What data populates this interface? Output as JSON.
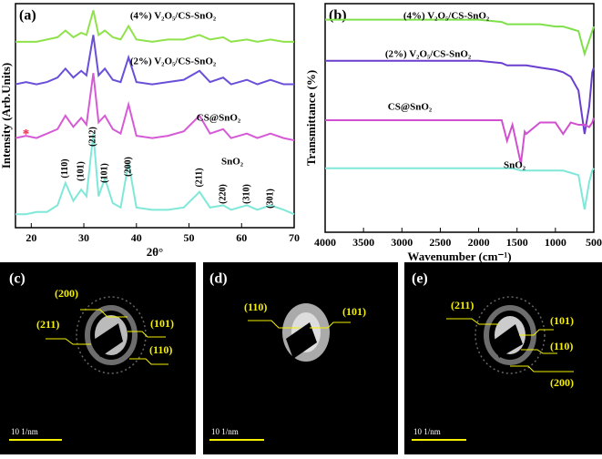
{
  "chart_data": [
    {
      "type": "line",
      "panel_label": "(a)",
      "xlabel": "2θ°",
      "ylabel": "Intensity (Arb.Units)",
      "xlim": [
        17,
        70
      ],
      "xticks": [
        20,
        30,
        40,
        50,
        60,
        70
      ],
      "ylim": [
        0,
        100
      ],
      "x": [
        17,
        19,
        21,
        23,
        25,
        26.5,
        28,
        29.5,
        30.5,
        31.8,
        32.8,
        34,
        35.5,
        37,
        38.5,
        40,
        43,
        46,
        49,
        52,
        54,
        56.5,
        58,
        61,
        63,
        65.5,
        68,
        70
      ],
      "series": [
        {
          "name": "SnO₂",
          "color": "#7fe8d8",
          "values": [
            6,
            6,
            7,
            7,
            10,
            20,
            12,
            17,
            14,
            42,
            14,
            22,
            11,
            9,
            29,
            9,
            8,
            8,
            9,
            16,
            9,
            10,
            8,
            10,
            8,
            10,
            8,
            6
          ]
        },
        {
          "name": "CS@SnO₂",
          "color": "#d65ad6",
          "values": [
            40,
            41,
            40,
            42,
            44,
            50,
            45,
            49,
            46,
            69,
            47,
            50,
            44,
            42,
            55,
            41,
            40,
            41,
            43,
            50,
            42,
            44,
            40,
            42,
            40,
            42,
            40,
            39
          ]
        },
        {
          "name": "(2%) V₂O₅/CS-SnO₂",
          "color": "#6a4fd8",
          "values": [
            64,
            65,
            64,
            65,
            67,
            71,
            67,
            70,
            68,
            86,
            68,
            71,
            66,
            65,
            76,
            65,
            64,
            65,
            66,
            70,
            65,
            67,
            64,
            66,
            64,
            66,
            64,
            64
          ]
        },
        {
          "name": "(4%) V₂O₅/CS-SnO₂",
          "color": "#8fe24a",
          "values": [
            83,
            83,
            83,
            84,
            85,
            88,
            85,
            87,
            86,
            97,
            86,
            88,
            85,
            84,
            90,
            84,
            83,
            84,
            84,
            86,
            84,
            85,
            83,
            84,
            83,
            84,
            83,
            83
          ]
        }
      ],
      "annotations": [
        {
          "text": "*",
          "x": 19
        },
        {
          "text": "(110)",
          "x": 26.5
        },
        {
          "text": "(101)",
          "x": 29.5
        },
        {
          "text": "(212)",
          "x": 31.8
        },
        {
          "text": "(101)",
          "x": 34
        },
        {
          "text": "(200)",
          "x": 38.5
        },
        {
          "text": "(211)",
          "x": 52
        },
        {
          "text": "(220)",
          "x": 56.5
        },
        {
          "text": "(310)",
          "x": 61
        },
        {
          "text": "(301)",
          "x": 65.5
        }
      ]
    },
    {
      "type": "line",
      "panel_label": "(b)",
      "xlabel": "Wavenumber (cm⁻¹)",
      "ylabel": "Transmittance (%)",
      "xlim": [
        4000,
        500
      ],
      "xticks": [
        4000,
        3500,
        3000,
        2500,
        2000,
        1500,
        1000,
        500
      ],
      "ylim": [
        0,
        100
      ],
      "x": [
        4000,
        3500,
        3000,
        2500,
        2000,
        1700,
        1630,
        1560,
        1450,
        1400,
        1380,
        1200,
        1000,
        900,
        800,
        700,
        620,
        560,
        520,
        500
      ],
      "series": [
        {
          "name": "(4%) V₂O₅/CS-SnO₂",
          "color": "#7ee04a",
          "values": [
            93,
            93,
            93,
            93,
            93,
            92,
            91,
            91,
            91,
            91,
            91,
            91,
            90,
            90,
            89,
            88,
            78,
            84,
            88,
            90
          ]
        },
        {
          "name": "(2%) V₂O₅/CS-SnO₂",
          "color": "#6a3fd0",
          "values": [
            75,
            75,
            75,
            75,
            75,
            74,
            73,
            73,
            73,
            73,
            73,
            72,
            71,
            70,
            68,
            62,
            43,
            55,
            70,
            72
          ]
        },
        {
          "name": "CS@SnO₂",
          "color": "#d050d0",
          "values": [
            49,
            49,
            49,
            49,
            49,
            49,
            40,
            47,
            30,
            44,
            43,
            48,
            48,
            43,
            48,
            47,
            47,
            46,
            48,
            50
          ]
        },
        {
          "name": "SnO₂",
          "color": "#7fe8d8",
          "values": [
            28,
            28,
            28,
            28,
            28,
            28,
            28,
            28,
            27,
            27,
            27,
            27,
            27,
            27,
            26,
            25,
            10,
            22,
            27,
            28
          ]
        }
      ]
    }
  ],
  "saed_panels": [
    {
      "label": "(c)",
      "rings": [
        "(200)",
        "(211)",
        "(101)",
        "(110)"
      ],
      "scale": "10 1/nm"
    },
    {
      "label": "(d)",
      "rings": [
        "(110)",
        "(101)"
      ],
      "scale": "10 1/nm"
    },
    {
      "label": "(e)",
      "rings": [
        "(211)",
        "(101)",
        "(110)",
        "(200)"
      ],
      "scale": "10 1/nm"
    }
  ]
}
